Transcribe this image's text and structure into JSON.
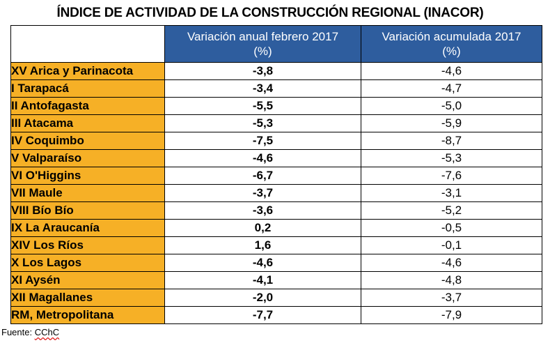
{
  "title": "ÍNDICE DE ACTIVIDAD DE LA CONSTRUCCIÓN REGIONAL (INACOR)",
  "headers": {
    "col1_line1": "Variación anual febrero 2017",
    "col1_line2": "(%)",
    "col2_line1": "Variación acumulada 2017",
    "col2_line2": "(%)"
  },
  "rows": [
    {
      "region": "XV Arica y Parinacota",
      "anual": "-3,8",
      "acumulada": "-4,6"
    },
    {
      "region": "I Tarapacá",
      "anual": "-3,4",
      "acumulada": "-4,7"
    },
    {
      "region": "II Antofagasta",
      "anual": "-5,5",
      "acumulada": "-5,0"
    },
    {
      "region": "III Atacama",
      "anual": "-5,3",
      "acumulada": "-5,9"
    },
    {
      "region": "IV Coquimbo",
      "anual": "-7,5",
      "acumulada": "-8,7"
    },
    {
      "region": "V Valparaíso",
      "anual": "-4,6",
      "acumulada": "-5,3"
    },
    {
      "region": "VI O'Higgins",
      "anual": "-6,7",
      "acumulada": "-7,6"
    },
    {
      "region": "VII Maule",
      "anual": "-3,7",
      "acumulada": "-3,1"
    },
    {
      "region": "VIII Bío Bío",
      "anual": "-3,6",
      "acumulada": "-5,2"
    },
    {
      "region": "IX La Araucanía",
      "anual": "0,2",
      "acumulada": "-0,5"
    },
    {
      "region": "XIV Los Ríos",
      "anual": "1,6",
      "acumulada": "-0,1"
    },
    {
      "region": "X Los Lagos",
      "anual": "-4,6",
      "acumulada": "-4,6"
    },
    {
      "region": "XI Aysén",
      "anual": "-4,1",
      "acumulada": "-4,8"
    },
    {
      "region": "XII Magallanes",
      "anual": "-2,0",
      "acumulada": "-3,7"
    },
    {
      "region": "RM, Metropolitana",
      "anual": "-7,7",
      "acumulada": "-7,9"
    }
  ],
  "source": {
    "label": "Fuente: ",
    "name": "CChC"
  },
  "colors": {
    "header_bg": "#2e5d9e",
    "region_bg": "#f6b026"
  }
}
